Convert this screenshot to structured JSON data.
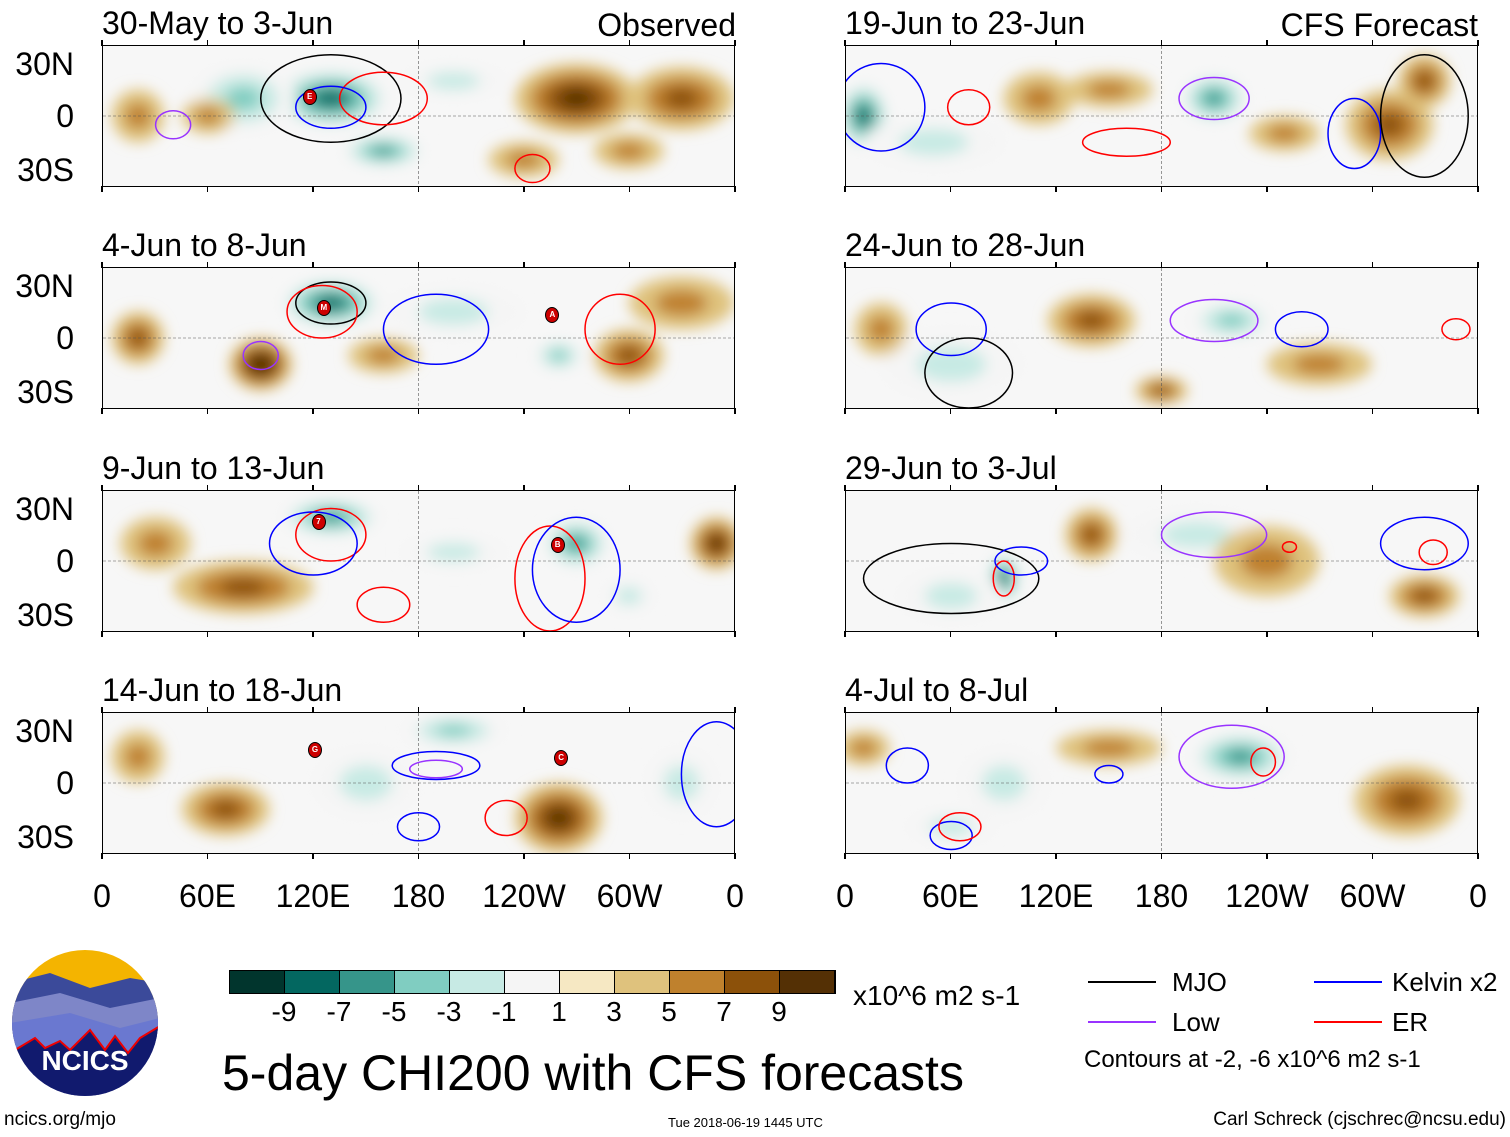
{
  "header": {
    "observed": "Observed",
    "forecast": "CFS Forecast"
  },
  "lat_labels": [
    "30N",
    "0",
    "30S"
  ],
  "lon_labels": [
    "0",
    "60E",
    "120E",
    "180",
    "120W",
    "60W",
    "0"
  ],
  "colors": {
    "levels": [
      "#01352d",
      "#036760",
      "#36958a",
      "#80cdc1",
      "#c7eae4",
      "#f5f5f5",
      "#f6e8c3",
      "#dfc27d",
      "#bf812d",
      "#8c510a",
      "#543005"
    ],
    "mjo": "#000000",
    "low": "#9933ff",
    "kelvin": "#0000ff",
    "er": "#ff0000"
  },
  "panels": [
    {
      "title": "30-May to 3-Jun",
      "blobs": [
        [
          130,
          10,
          -9,
          35,
          18
        ],
        [
          80,
          10,
          -5,
          30,
          20
        ],
        [
          160,
          -20,
          -7,
          25,
          10
        ],
        [
          200,
          20,
          -3,
          30,
          10
        ],
        [
          270,
          10,
          7,
          35,
          20
        ],
        [
          330,
          10,
          5,
          30,
          18
        ],
        [
          60,
          0,
          3,
          15,
          10
        ],
        [
          20,
          0,
          3,
          15,
          15
        ],
        [
          240,
          -25,
          3,
          20,
          10
        ],
        [
          300,
          -20,
          3,
          20,
          10
        ]
      ],
      "contours": [
        [
          "mjo",
          130,
          10,
          40,
          25
        ],
        [
          "er",
          160,
          10,
          25,
          15
        ],
        [
          "kelvin",
          130,
          5,
          20,
          12
        ],
        [
          "low",
          40,
          -5,
          10,
          8
        ],
        [
          "er",
          245,
          -30,
          10,
          8
        ]
      ],
      "markers": [
        [
          "E",
          117,
          12
        ]
      ]
    },
    {
      "title": "4-Jun to 8-Jun",
      "blobs": [
        [
          130,
          20,
          -9,
          30,
          15
        ],
        [
          90,
          -15,
          9,
          18,
          15
        ],
        [
          20,
          0,
          5,
          15,
          15
        ],
        [
          300,
          -10,
          5,
          20,
          15
        ],
        [
          260,
          -10,
          -5,
          15,
          10
        ],
        [
          200,
          15,
          -3,
          40,
          15
        ],
        [
          330,
          20,
          3,
          30,
          15
        ],
        [
          160,
          -10,
          3,
          20,
          10
        ]
      ],
      "contours": [
        [
          "mjo",
          130,
          20,
          20,
          12
        ],
        [
          "er",
          125,
          15,
          20,
          15
        ],
        [
          "kelvin",
          190,
          5,
          30,
          20
        ],
        [
          "er",
          295,
          5,
          20,
          20
        ],
        [
          "low",
          90,
          -10,
          10,
          8
        ]
      ],
      "markers": [
        [
          "M",
          125,
          18
        ],
        [
          "A",
          255,
          14
        ]
      ]
    },
    {
      "title": "9-Jun to 13-Jun",
      "blobs": [
        [
          130,
          25,
          -7,
          30,
          12
        ],
        [
          80,
          -15,
          5,
          40,
          15
        ],
        [
          350,
          10,
          7,
          15,
          15
        ],
        [
          270,
          10,
          -7,
          20,
          15
        ],
        [
          200,
          5,
          -3,
          30,
          10
        ],
        [
          300,
          -20,
          -3,
          15,
          10
        ],
        [
          30,
          10,
          3,
          20,
          15
        ]
      ],
      "contours": [
        [
          "er",
          130,
          15,
          20,
          15
        ],
        [
          "kelvin",
          120,
          10,
          25,
          18
        ],
        [
          "er",
          255,
          -10,
          20,
          30
        ],
        [
          "kelvin",
          270,
          -5,
          25,
          30
        ],
        [
          "er",
          160,
          -25,
          15,
          10
        ]
      ],
      "markers": [
        [
          "7",
          122,
          23
        ],
        [
          "B",
          258,
          10
        ]
      ]
    },
    {
      "title": "14-Jun to 18-Jun",
      "blobs": [
        [
          200,
          30,
          -5,
          30,
          10
        ],
        [
          260,
          -20,
          7,
          25,
          20
        ],
        [
          70,
          -15,
          5,
          25,
          15
        ],
        [
          150,
          0,
          -3,
          30,
          20
        ],
        [
          330,
          0,
          -3,
          20,
          20
        ],
        [
          20,
          15,
          3,
          15,
          15
        ]
      ],
      "contours": [
        [
          "kelvin",
          190,
          10,
          25,
          8
        ],
        [
          "low",
          190,
          8,
          15,
          5
        ],
        [
          "kelvin",
          350,
          5,
          20,
          30
        ],
        [
          "er",
          230,
          -20,
          12,
          10
        ],
        [
          "kelvin",
          180,
          -25,
          12,
          8
        ]
      ],
      "markers": [
        [
          "G",
          120,
          20
        ],
        [
          "C",
          260,
          15
        ]
      ]
    },
    {
      "title": "19-Jun to 23-Jun",
      "blobs": [
        [
          10,
          0,
          -9,
          15,
          20
        ],
        [
          210,
          10,
          -7,
          20,
          15
        ],
        [
          50,
          -15,
          -3,
          40,
          15
        ],
        [
          310,
          -5,
          5,
          25,
          20
        ],
        [
          110,
          10,
          3,
          20,
          15
        ],
        [
          150,
          15,
          3,
          25,
          10
        ],
        [
          250,
          -10,
          3,
          20,
          10
        ],
        [
          330,
          20,
          5,
          15,
          15
        ]
      ],
      "contours": [
        [
          "kelvin",
          20,
          5,
          25,
          25
        ],
        [
          "low",
          210,
          10,
          20,
          12
        ],
        [
          "er",
          70,
          5,
          12,
          10
        ],
        [
          "er",
          160,
          -15,
          25,
          8
        ],
        [
          "kelvin",
          290,
          -10,
          15,
          20
        ],
        [
          "mjo",
          330,
          0,
          25,
          35
        ]
      ],
      "markers": []
    },
    {
      "title": "24-Jun to 28-Jun",
      "blobs": [
        [
          220,
          10,
          -5,
          25,
          12
        ],
        [
          60,
          -15,
          -3,
          40,
          20
        ],
        [
          140,
          10,
          5,
          25,
          15
        ],
        [
          180,
          -30,
          5,
          15,
          8
        ],
        [
          270,
          -15,
          3,
          30,
          12
        ],
        [
          20,
          5,
          3,
          15,
          15
        ]
      ],
      "contours": [
        [
          "low",
          210,
          10,
          25,
          12
        ],
        [
          "kelvin",
          60,
          5,
          20,
          15
        ],
        [
          "kelvin",
          260,
          5,
          15,
          10
        ],
        [
          "er",
          348,
          5,
          8,
          6
        ],
        [
          "mjo",
          70,
          -20,
          25,
          20
        ]
      ],
      "markers": []
    },
    {
      "title": "29-Jun to 3-Jul",
      "blobs": [
        [
          90,
          -10,
          -9,
          10,
          15
        ],
        [
          200,
          15,
          -3,
          40,
          15
        ],
        [
          140,
          15,
          5,
          15,
          15
        ],
        [
          330,
          -20,
          5,
          20,
          12
        ],
        [
          240,
          0,
          3,
          30,
          20
        ],
        [
          60,
          -20,
          -3,
          30,
          15
        ]
      ],
      "contours": [
        [
          "low",
          210,
          15,
          30,
          13
        ],
        [
          "mjo",
          60,
          -10,
          50,
          20
        ],
        [
          "er",
          90,
          -10,
          6,
          10
        ],
        [
          "kelvin",
          100,
          0,
          15,
          8
        ],
        [
          "kelvin",
          330,
          10,
          25,
          15
        ],
        [
          "er",
          335,
          5,
          8,
          7
        ],
        [
          "er",
          253,
          8,
          4,
          3
        ]
      ],
      "markers": []
    },
    {
      "title": "4-Jul to 8-Jul",
      "blobs": [
        [
          225,
          15,
          -7,
          30,
          15
        ],
        [
          60,
          -25,
          -3,
          25,
          10
        ],
        [
          90,
          0,
          -3,
          25,
          20
        ],
        [
          320,
          -10,
          5,
          30,
          20
        ],
        [
          150,
          20,
          3,
          30,
          10
        ],
        [
          10,
          20,
          3,
          15,
          10
        ]
      ],
      "contours": [
        [
          "low",
          220,
          15,
          30,
          18
        ],
        [
          "er",
          238,
          12,
          7,
          8
        ],
        [
          "kelvin",
          35,
          10,
          12,
          10
        ],
        [
          "kelvin",
          60,
          -30,
          12,
          8
        ],
        [
          "er",
          65,
          -25,
          12,
          8
        ],
        [
          "kelvin",
          150,
          5,
          8,
          5
        ]
      ],
      "markers": []
    }
  ],
  "colorbar": {
    "labels": [
      "-9",
      "-7",
      "-5",
      "-3",
      "-1",
      "1",
      "3",
      "5",
      "7",
      "9"
    ],
    "unit": "x10^6 m2 s-1"
  },
  "title": "5-day CHI200 with CFS forecasts",
  "legend": {
    "mjo": "MJO",
    "kelvin": "Kelvin x2",
    "low": "Low",
    "er": "ER",
    "note": "Contours at -2, -6 x10^6 m2 s-1"
  },
  "footer": {
    "url": "ncics.org/mjo",
    "timestamp": "Tue 2018-06-19 1445 UTC",
    "credit": "Carl Schreck (cjschrec@ncsu.edu)",
    "logo": "NCICS"
  }
}
